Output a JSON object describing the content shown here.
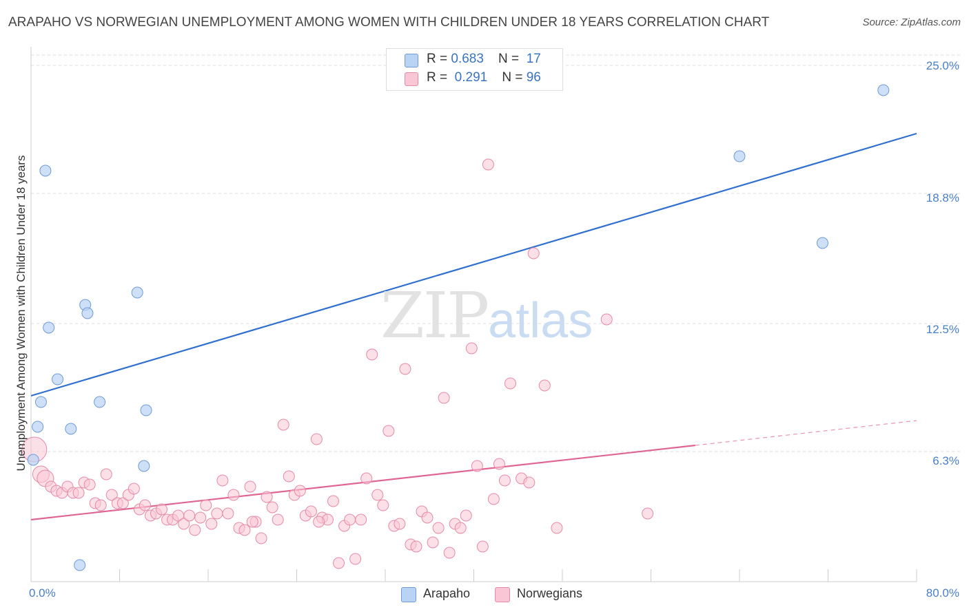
{
  "header": {
    "title": "ARAPAHO VS NORWEGIAN UNEMPLOYMENT AMONG WOMEN WITH CHILDREN UNDER 18 YEARS CORRELATION CHART",
    "source": "Source: ZipAtlas.com"
  },
  "watermark": {
    "zip": "ZIP",
    "atlas": "atlas"
  },
  "legend": {
    "series": [
      {
        "name": "Arapaho",
        "r_label": "R = ",
        "r": "0.683",
        "n_label": "N = ",
        "n": "17",
        "fill": "#b9d3f4",
        "stroke": "#6f9ad6"
      },
      {
        "name": "Norwegians",
        "r_label": "R = ",
        "r": "0.291",
        "n_label": "N = ",
        "n": "96",
        "fill": "#f9c6d5",
        "stroke": "#e58aa6"
      }
    ]
  },
  "colors": {
    "arapaho_line": "#2f6fcf",
    "norwegian_line": "#e06593",
    "grid": "#dddddd",
    "tick_text": "#4a7fc7"
  },
  "chart_data": {
    "type": "scatter",
    "title": "ARAPAHO VS NORWEGIAN UNEMPLOYMENT AMONG WOMEN WITH CHILDREN UNDER 18 YEARS CORRELATION CHART",
    "xlabel": "",
    "ylabel": "Unemployment Among Women with Children Under 18 years",
    "xlim": [
      0,
      80
    ],
    "ylim": [
      0,
      25.5
    ],
    "x_tick_labels": [
      "0.0%",
      "80.0%"
    ],
    "y_ticks": [
      6.3,
      12.5,
      18.8,
      25.0
    ],
    "y_tick_labels": [
      "6.3%",
      "12.5%",
      "18.8%",
      "25.0%"
    ],
    "grid": true,
    "series": [
      {
        "name": "Arapaho",
        "points": [
          [
            0.2,
            5.9
          ],
          [
            0.6,
            7.5
          ],
          [
            0.9,
            8.7
          ],
          [
            1.3,
            19.9
          ],
          [
            1.6,
            12.3
          ],
          [
            2.4,
            9.8
          ],
          [
            3.6,
            7.4
          ],
          [
            4.4,
            0.8
          ],
          [
            4.9,
            13.4
          ],
          [
            5.1,
            13.0
          ],
          [
            6.2,
            8.7
          ],
          [
            9.6,
            14.0
          ],
          [
            10.2,
            5.6
          ],
          [
            10.4,
            8.3
          ],
          [
            64.0,
            20.6
          ],
          [
            71.5,
            16.4
          ],
          [
            77.0,
            23.8
          ]
        ],
        "trend": {
          "x": [
            0,
            80
          ],
          "y": [
            9.0,
            21.7
          ]
        }
      },
      {
        "name": "Norwegians",
        "points": [
          [
            0.3,
            6.4
          ],
          [
            0.9,
            5.2
          ],
          [
            1.3,
            5.0
          ],
          [
            1.8,
            4.6
          ],
          [
            2.3,
            4.4
          ],
          [
            2.8,
            4.3
          ],
          [
            3.3,
            4.6
          ],
          [
            3.8,
            4.3
          ],
          [
            4.3,
            4.3
          ],
          [
            4.8,
            4.8
          ],
          [
            5.3,
            4.7
          ],
          [
            5.8,
            3.8
          ],
          [
            6.3,
            3.7
          ],
          [
            6.8,
            5.2
          ],
          [
            7.3,
            4.2
          ],
          [
            7.8,
            3.8
          ],
          [
            8.3,
            3.8
          ],
          [
            8.8,
            4.2
          ],
          [
            9.3,
            4.5
          ],
          [
            9.8,
            3.5
          ],
          [
            10.3,
            3.7
          ],
          [
            10.8,
            3.2
          ],
          [
            11.3,
            3.3
          ],
          [
            11.8,
            3.5
          ],
          [
            12.3,
            3.0
          ],
          [
            12.8,
            3.0
          ],
          [
            13.3,
            3.2
          ],
          [
            13.8,
            2.8
          ],
          [
            14.3,
            3.2
          ],
          [
            14.8,
            2.5
          ],
          [
            15.3,
            3.1
          ],
          [
            15.8,
            3.7
          ],
          [
            16.3,
            2.8
          ],
          [
            16.8,
            3.3
          ],
          [
            17.3,
            4.9
          ],
          [
            17.8,
            3.3
          ],
          [
            18.3,
            4.2
          ],
          [
            18.8,
            2.6
          ],
          [
            19.3,
            2.5
          ],
          [
            19.8,
            4.6
          ],
          [
            20.3,
            2.9
          ],
          [
            20.8,
            2.1
          ],
          [
            21.3,
            4.1
          ],
          [
            21.8,
            3.6
          ],
          [
            22.3,
            3.0
          ],
          [
            22.8,
            7.6
          ],
          [
            23.3,
            5.1
          ],
          [
            23.8,
            4.2
          ],
          [
            24.3,
            4.4
          ],
          [
            24.8,
            3.2
          ],
          [
            25.3,
            3.4
          ],
          [
            25.8,
            6.9
          ],
          [
            26.3,
            3.1
          ],
          [
            26.8,
            3.0
          ],
          [
            27.3,
            3.9
          ],
          [
            27.8,
            0.9
          ],
          [
            28.3,
            2.7
          ],
          [
            28.8,
            3.0
          ],
          [
            29.3,
            1.1
          ],
          [
            29.8,
            3.0
          ],
          [
            30.3,
            5.0
          ],
          [
            30.8,
            11.0
          ],
          [
            31.3,
            4.2
          ],
          [
            31.8,
            3.7
          ],
          [
            32.3,
            7.3
          ],
          [
            32.8,
            2.7
          ],
          [
            33.3,
            2.8
          ],
          [
            33.8,
            10.3
          ],
          [
            34.3,
            1.8
          ],
          [
            34.8,
            1.7
          ],
          [
            35.3,
            3.4
          ],
          [
            35.8,
            3.1
          ],
          [
            36.3,
            1.9
          ],
          [
            36.8,
            2.6
          ],
          [
            37.3,
            8.9
          ],
          [
            37.8,
            1.4
          ],
          [
            38.3,
            2.8
          ],
          [
            38.8,
            2.6
          ],
          [
            39.3,
            3.2
          ],
          [
            39.8,
            11.3
          ],
          [
            40.3,
            5.6
          ],
          [
            40.8,
            1.7
          ],
          [
            41.3,
            20.2
          ],
          [
            41.8,
            4.0
          ],
          [
            42.3,
            5.7
          ],
          [
            42.8,
            4.9
          ],
          [
            43.3,
            9.6
          ],
          [
            44.3,
            5.0
          ],
          [
            45.0,
            4.8
          ],
          [
            45.4,
            15.9
          ],
          [
            46.4,
            9.5
          ],
          [
            52.0,
            12.7
          ],
          [
            55.7,
            3.3
          ],
          [
            47.5,
            2.6
          ],
          [
            26.0,
            2.9
          ],
          [
            20.0,
            2.9
          ]
        ],
        "trend": {
          "x": [
            0,
            60,
            80
          ],
          "y": [
            3.0,
            6.6,
            7.8
          ]
        }
      }
    ]
  }
}
